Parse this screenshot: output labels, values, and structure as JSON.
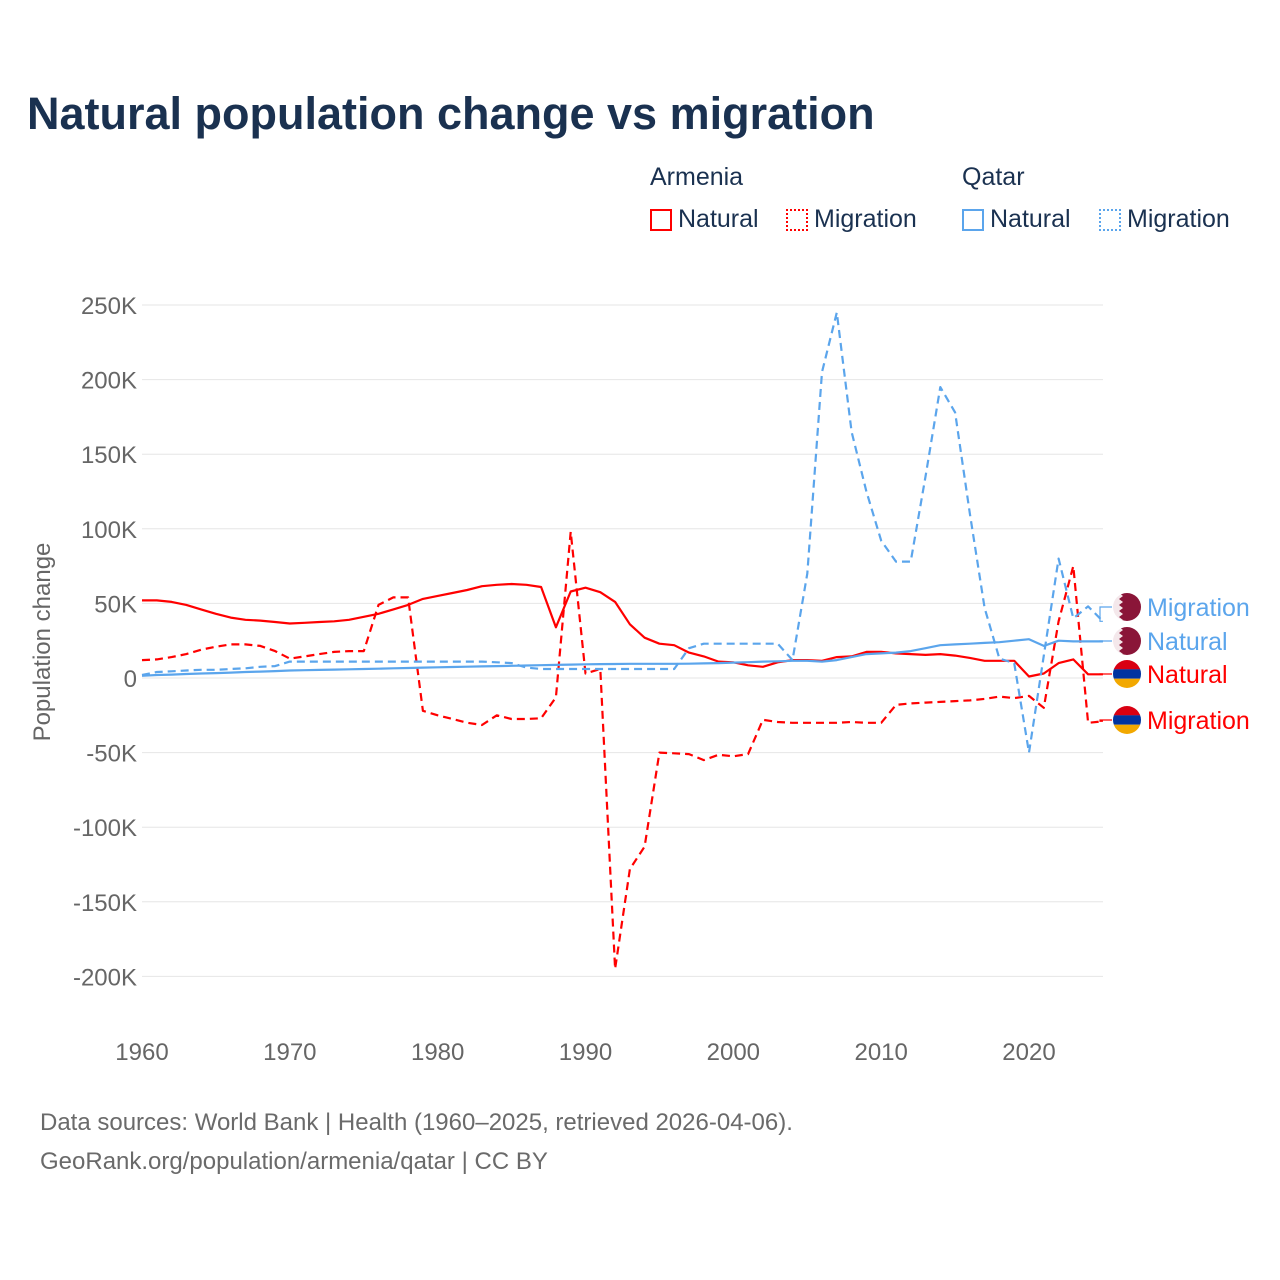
{
  "chart_data": {
    "type": "line",
    "title": "Natural population change vs migration",
    "ylabel": "Population change",
    "xlabel": "",
    "xlim": [
      1960,
      2025
    ],
    "ylim": [
      -225000,
      260000
    ],
    "x_ticks": [
      1960,
      1970,
      1980,
      1990,
      2000,
      2010,
      2020
    ],
    "x_tick_labels": [
      "1960",
      "1970",
      "1980",
      "1990",
      "2000",
      "2010",
      "2020"
    ],
    "y_ticks": [
      250000,
      200000,
      150000,
      100000,
      50000,
      0,
      -50000,
      -100000,
      -150000,
      -200000
    ],
    "y_tick_labels": [
      "250K",
      "200K",
      "150K",
      "100K",
      "50K",
      "0",
      "-50K",
      "-100K",
      "-150K",
      "-200K"
    ],
    "grid": true,
    "legend": {
      "placement": "top-right",
      "groups": [
        {
          "name": "Armenia",
          "items": [
            "Natural",
            "Migration"
          ]
        },
        {
          "name": "Qatar",
          "items": [
            "Natural",
            "Migration"
          ]
        }
      ]
    },
    "x": [
      1960,
      1961,
      1962,
      1963,
      1964,
      1965,
      1966,
      1967,
      1968,
      1969,
      1970,
      1971,
      1972,
      1973,
      1974,
      1975,
      1976,
      1977,
      1978,
      1979,
      1980,
      1981,
      1982,
      1983,
      1984,
      1985,
      1986,
      1987,
      1988,
      1989,
      1990,
      1991,
      1992,
      1993,
      1994,
      1995,
      1996,
      1997,
      1998,
      1999,
      2000,
      2001,
      2002,
      2003,
      2004,
      2005,
      2006,
      2007,
      2008,
      2009,
      2010,
      2011,
      2012,
      2013,
      2014,
      2015,
      2016,
      2017,
      2018,
      2019,
      2020,
      2021,
      2022,
      2023,
      2024,
      2025
    ],
    "series": [
      {
        "name": "Armenia Natural",
        "country": "Armenia",
        "kind": "Natural",
        "color": "#ff0000",
        "dash": false,
        "end_label": "Natural",
        "values": [
          52,
          52,
          51,
          49,
          46,
          43,
          40.5,
          39,
          38.5,
          37.5,
          36.5,
          37,
          37.5,
          38,
          39,
          41,
          43,
          46,
          49,
          53,
          55,
          57,
          59,
          61.5,
          62.5,
          63,
          62.5,
          61,
          34,
          58,
          60.5,
          57.5,
          51,
          36,
          27,
          23,
          22,
          17,
          14.5,
          11,
          10.5,
          8.5,
          7.5,
          10.5,
          12,
          12,
          11.5,
          14,
          14.5,
          17.5,
          17.5,
          16.5,
          16,
          15.5,
          16,
          15,
          13.5,
          11.5,
          11.5,
          11.5,
          1,
          3,
          10,
          12.5,
          2.5,
          2.5
        ]
      },
      {
        "name": "Armenia Migration",
        "country": "Armenia",
        "kind": "Migration",
        "color": "#ff0000",
        "dash": true,
        "end_label": "Migration",
        "values": [
          12,
          12.5,
          14,
          16,
          19,
          21,
          22.5,
          22.5,
          21.5,
          18,
          13,
          14.5,
          16,
          17.5,
          18,
          18,
          49,
          54,
          54,
          -22,
          -25,
          -27.5,
          -30,
          -31.5,
          -25,
          -27.5,
          -27.5,
          -27,
          -13,
          98,
          3,
          6,
          -195,
          -128,
          -113,
          -50,
          -50.5,
          -51,
          -55,
          -51.5,
          -52.5,
          -51,
          -28,
          -29.5,
          -30,
          -30,
          -30,
          -30,
          -29.5,
          -30,
          -30,
          -18,
          -17,
          -16.5,
          -16,
          -15.5,
          -15,
          -14,
          -12.5,
          -13.5,
          -12,
          -20,
          38,
          75,
          -30,
          -29
        ]
      },
      {
        "name": "Qatar Natural",
        "country": "Qatar",
        "kind": "Natural",
        "color": "#5ba5ec",
        "dash": false,
        "end_label": "Natural",
        "values": [
          1.5,
          2,
          2.3,
          2.7,
          3,
          3.3,
          3.6,
          4,
          4.3,
          4.6,
          5,
          5.2,
          5.4,
          5.6,
          5.8,
          6,
          6.2,
          6.5,
          6.7,
          7,
          7.2,
          7.4,
          7.6,
          7.8,
          8,
          8.2,
          8.4,
          8.6,
          8.8,
          9,
          9.2,
          9.3,
          9.4,
          9.5,
          9.5,
          9.5,
          9.5,
          9.6,
          9.8,
          10,
          10.3,
          10.6,
          11,
          11.2,
          11.5,
          11.5,
          11,
          12,
          14,
          16,
          16.5,
          17,
          18,
          20,
          22,
          22.5,
          23,
          23.5,
          24,
          25,
          26,
          21.5,
          25,
          24.5,
          24.5,
          24.5
        ]
      },
      {
        "name": "Qatar Migration",
        "country": "Qatar",
        "kind": "Migration",
        "color": "#5ba5ec",
        "dash": true,
        "end_label": "Migration",
        "values": [
          2,
          4,
          4.5,
          5,
          5.5,
          5.5,
          6,
          6.5,
          7.5,
          8,
          11,
          11,
          11,
          11,
          11,
          11,
          11,
          11,
          11,
          11,
          11,
          11,
          11,
          11,
          10.5,
          10,
          7,
          6,
          6,
          6,
          6,
          6,
          6,
          6,
          6,
          6,
          6,
          20,
          23,
          23,
          23,
          23,
          23,
          23,
          12,
          70,
          205,
          245,
          165,
          125,
          92,
          78,
          78,
          135,
          195,
          178,
          110,
          47,
          13,
          10,
          -50,
          15,
          80,
          40,
          48,
          38
        ]
      }
    ],
    "value_unit": "thousands"
  },
  "legend_labels": {
    "armenia": "Armenia",
    "qatar": "Qatar",
    "natural": "Natural",
    "migration": "Migration"
  },
  "footer": {
    "line1": "Data sources: World Bank | Health (1960–2025, retrieved 2026-04-06).",
    "line2": "GeoRank.org/population/armenia/qatar | CC BY"
  },
  "colors": {
    "armenia": "#ff0000",
    "qatar": "#5ba5ec",
    "title": "#1a3150"
  }
}
